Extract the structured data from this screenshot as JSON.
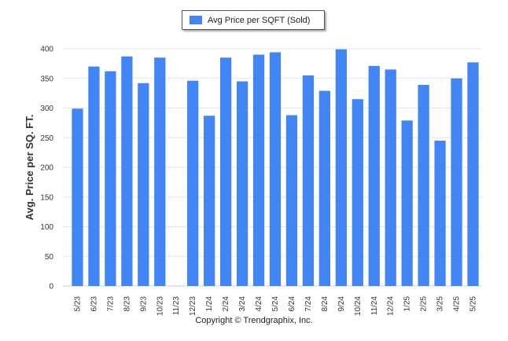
{
  "chart_data": {
    "type": "bar",
    "title": "",
    "xlabel": "",
    "ylabel": "Avg. Price per SQ. FT.",
    "ylim": [
      0,
      400
    ],
    "yticks": [
      0,
      50,
      100,
      150,
      200,
      250,
      300,
      350,
      400
    ],
    "grid": true,
    "legend_position": "top-center",
    "categories": [
      "5/23",
      "6/23",
      "7/23",
      "8/23",
      "9/23",
      "10/23",
      "11/23",
      "12/23",
      "1/24",
      "2/24",
      "3/24",
      "4/24",
      "5/24",
      "6/24",
      "7/24",
      "8/24",
      "9/24",
      "10/24",
      "11/24",
      "12/24",
      "1/25",
      "2/25",
      "3/25",
      "4/25",
      "5/25"
    ],
    "series": [
      {
        "name": "Avg Price per SQFT (Sold)",
        "color": "#4285f4",
        "values": [
          299,
          370,
          362,
          387,
          342,
          385,
          null,
          346,
          287,
          385,
          345,
          390,
          394,
          288,
          355,
          329,
          399,
          315,
          371,
          365,
          279,
          339,
          245,
          350,
          377
        ]
      }
    ]
  },
  "legend": {
    "label": "Avg Price per SQFT (Sold)"
  },
  "footer": {
    "copyright": "Copyright © Trendgraphix, Inc."
  },
  "colors": {
    "bar": "#4285f4",
    "grid": "#e6e6e6",
    "axis": "#cccccc"
  }
}
